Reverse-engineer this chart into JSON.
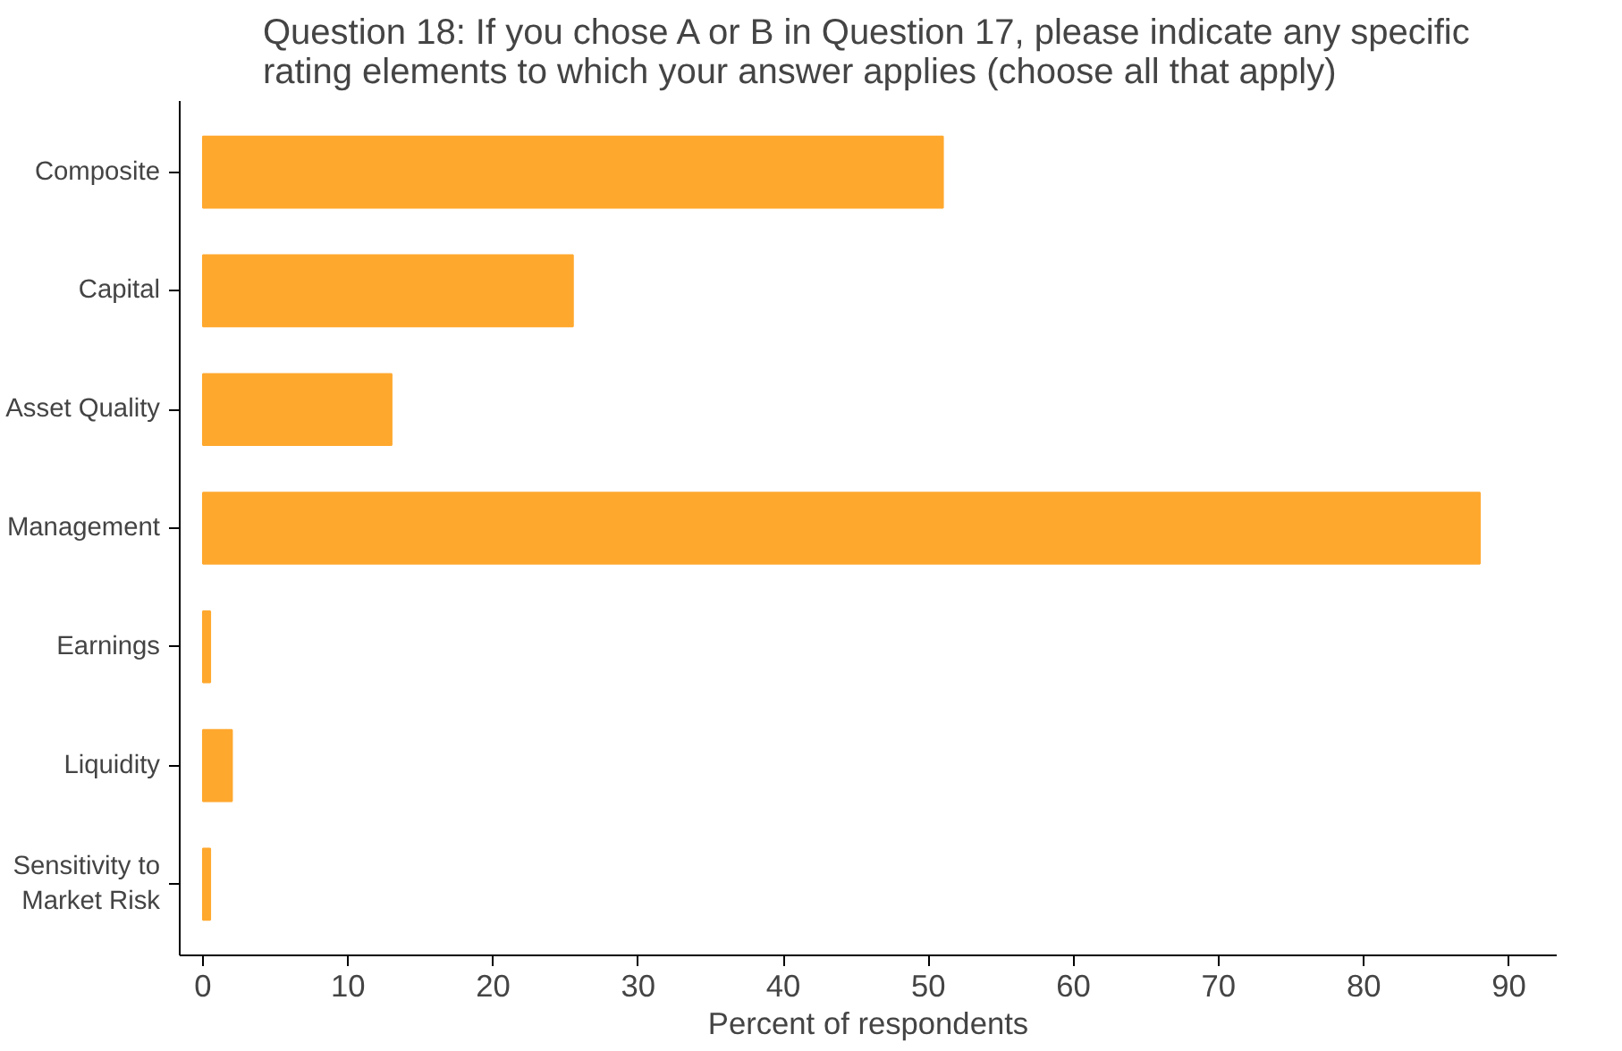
{
  "chart_data": {
    "type": "bar",
    "orientation": "horizontal",
    "title": "Question 18: If you chose A or B in Question 17, please indicate any specific\nrating elements to which your answer applies (choose all that apply)",
    "xlabel": "Percent of respondents",
    "categories": [
      "Composite",
      "Capital",
      "Asset Quality",
      "Management",
      "Earnings",
      "Liquidity",
      "Sensitivity to\nMarket Risk"
    ],
    "values": [
      51,
      25.5,
      13,
      88,
      0.5,
      2,
      0.5
    ],
    "color": "#ffa82e",
    "xlim": [
      -1.6,
      93.3
    ],
    "xticks": [
      0,
      10,
      20,
      30,
      40,
      50,
      60,
      70,
      80,
      90
    ],
    "grid": false
  }
}
